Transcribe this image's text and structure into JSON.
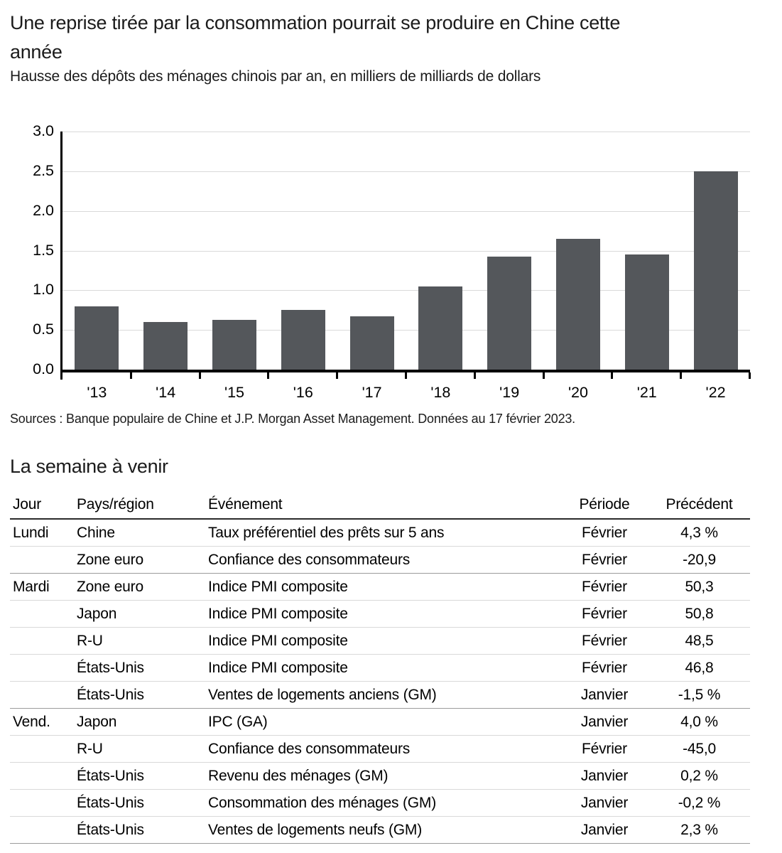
{
  "header": {
    "title_line1": "Une reprise tirée par la consommation pourrait se produire en Chine cette",
    "title_line2": "année",
    "subtitle": "Hausse des dépôts des ménages chinois par an, en milliers de milliards de dollars"
  },
  "chart_data": {
    "type": "bar",
    "title": "Hausse des dépôts des ménages chinois par an, en milliers de milliards de dollars",
    "categories": [
      "'13",
      "'14",
      "'15",
      "'16",
      "'17",
      "'18",
      "'19",
      "'20",
      "'21",
      "'22"
    ],
    "values": [
      0.8,
      0.6,
      0.63,
      0.75,
      0.67,
      1.05,
      1.42,
      1.65,
      1.45,
      2.5
    ],
    "xlabel": "",
    "ylabel": "",
    "ylim": [
      0,
      3.0
    ],
    "ytick_step": 0.5,
    "ytick_labels": [
      "0.0",
      "0.5",
      "1.0",
      "1.5",
      "2.0",
      "2.5",
      "3.0"
    ],
    "grid": true,
    "legend_position": "none",
    "bar_color": "#54575b",
    "grid_color": "#d9d9d9",
    "axis_color": "#000000"
  },
  "source_note": "Sources : Banque populaire de Chine et J.P. Morgan Asset Management. Données au 17 février 2023.",
  "week_table": {
    "title": "La semaine à venir",
    "columns": [
      "Jour",
      "Pays/région",
      "Événement",
      "Période",
      "Précédent"
    ],
    "rows": [
      {
        "day": "Lundi",
        "region": "Chine",
        "event": "Taux préférentiel des prêts sur 5 ans",
        "period": "Février",
        "previous": "4,3 %",
        "divider": "light"
      },
      {
        "day": "",
        "region": "Zone euro",
        "event": "Confiance des consommateurs",
        "period": "Février",
        "previous": "-20,9",
        "divider": "group"
      },
      {
        "day": "Mardi",
        "region": "Zone euro",
        "event": "Indice PMI composite",
        "period": "Février",
        "previous": "50,3",
        "divider": "light"
      },
      {
        "day": "",
        "region": "Japon",
        "event": "Indice PMI composite",
        "period": "Février",
        "previous": "50,8",
        "divider": "light"
      },
      {
        "day": "",
        "region": "R-U",
        "event": "Indice PMI composite",
        "period": "Février",
        "previous": "48,5",
        "divider": "light"
      },
      {
        "day": "",
        "region": "États-Unis",
        "event": "Indice PMI composite",
        "period": "Février",
        "previous": "46,8",
        "divider": "light"
      },
      {
        "day": "",
        "region": "États-Unis",
        "event": "Ventes de logements anciens (GM)",
        "period": "Janvier",
        "previous": "-1,5 %",
        "divider": "group"
      },
      {
        "day": "Vend.",
        "region": "Japon",
        "event": "IPC (GA)",
        "period": "Janvier",
        "previous": "4,0 %",
        "divider": "light"
      },
      {
        "day": "",
        "region": "R-U",
        "event": "Confiance des consommateurs",
        "period": "Février",
        "previous": "-45,0",
        "divider": "light"
      },
      {
        "day": "",
        "region": "États-Unis",
        "event": "Revenu des ménages (GM)",
        "period": "Janvier",
        "previous": "0,2 %",
        "divider": "light"
      },
      {
        "day": "",
        "region": "États-Unis",
        "event": "Consommation des ménages (GM)",
        "period": "Janvier",
        "previous": "-0,2 %",
        "divider": "light"
      },
      {
        "day": "",
        "region": "États-Unis",
        "event": "Ventes de logements neufs (GM)",
        "period": "Janvier",
        "previous": "2,3 %",
        "divider": "group"
      }
    ]
  }
}
